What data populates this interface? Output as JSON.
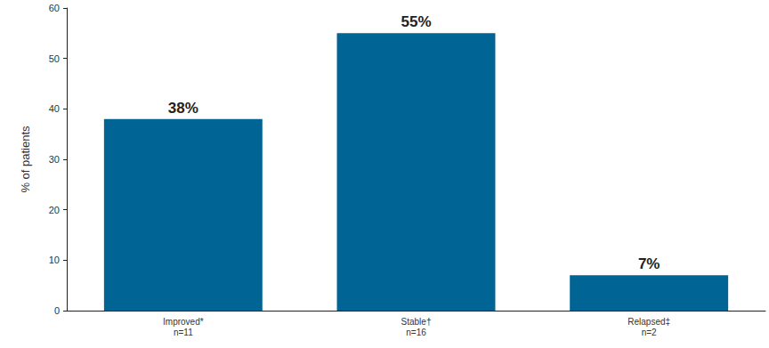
{
  "chart_data": {
    "type": "bar",
    "ylabel": "% of patients",
    "categories": [
      "Improved*\nn=11",
      "Stable†\nn=16",
      "Relapsed‡\nn=2"
    ],
    "values": [
      38,
      55,
      7
    ],
    "value_labels": [
      "38%",
      "55%",
      "7%"
    ],
    "color": "#006595",
    "ylim": [
      0,
      60
    ],
    "yticks": [
      0,
      10,
      20,
      30,
      40,
      50,
      60
    ],
    "grid": false,
    "data_labels": true
  }
}
